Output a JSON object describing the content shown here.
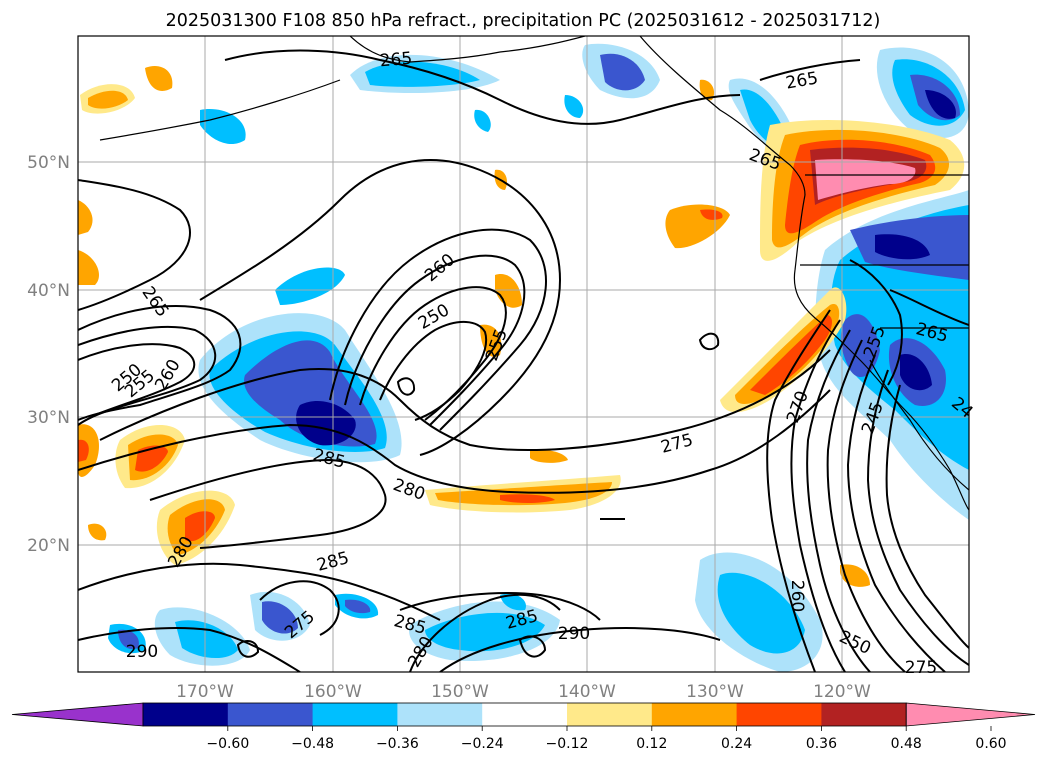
{
  "title": "2025031300 F108 850 hPa refract., precipitation PC (2025031612 - 2025031712)",
  "lat_labels": [
    "50°N",
    "40°N",
    "30°N",
    "20°N"
  ],
  "lon_labels": [
    "170°W",
    "160°W",
    "150°W",
    "140°W",
    "130°W",
    "120°W"
  ],
  "colorbar": {
    "ticks": [
      "−0.60",
      "−0.48",
      "−0.36",
      "−0.24",
      "−0.12",
      "0.12",
      "0.24",
      "0.36",
      "0.48",
      "0.60"
    ],
    "colors": [
      "#9932CC",
      "#00008B",
      "#3A56CF",
      "#00BFFF",
      "#ADE2FA",
      "#FFFFFF",
      "#FFE98A",
      "#FFA500",
      "#FF4500",
      "#B22222",
      "#FF8CB0"
    ],
    "extend": "both"
  },
  "contour_labels": [
    "265",
    "265",
    "265",
    "265",
    "260",
    "250",
    "255",
    "250",
    "255",
    "260",
    "285",
    "280",
    "280",
    "285",
    "275",
    "285",
    "285",
    "280",
    "290",
    "290",
    "270",
    "245",
    "255",
    "265",
    "260",
    "250",
    "275",
    "275",
    "24"
  ],
  "map": {
    "projection": "cylindrical",
    "extent_lon": [
      -180,
      -110
    ],
    "extent_lat": [
      10,
      60
    ],
    "gridlines": true,
    "contour_color": "#000000"
  }
}
